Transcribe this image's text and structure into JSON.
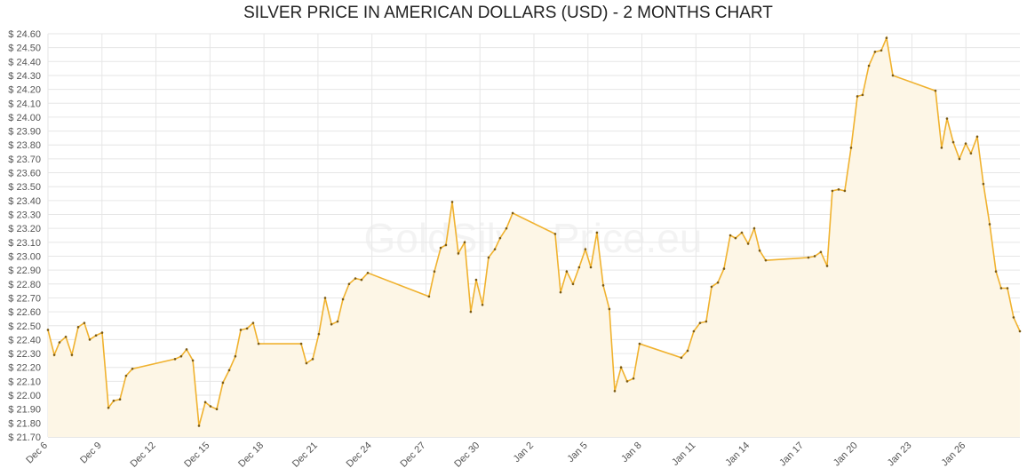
{
  "chart_data": {
    "type": "line",
    "title": "SILVER PRICE IN AMERICAN DOLLARS (USD) - 2 MONTHS CHART",
    "watermark": "GoldSilverPrice.eu",
    "color": "#f0b22f",
    "fill_color": "#fdf6e6",
    "marker_color": "#7a5a14",
    "grid": true,
    "xlim": [
      0,
      54
    ],
    "ylim": [
      21.7,
      24.6
    ],
    "xticks": [
      {
        "value": 0,
        "label": "Dec 6"
      },
      {
        "value": 3,
        "label": "Dec 9"
      },
      {
        "value": 6,
        "label": "Dec 12"
      },
      {
        "value": 9,
        "label": "Dec 15"
      },
      {
        "value": 12,
        "label": "Dec 18"
      },
      {
        "value": 15,
        "label": "Dec 21"
      },
      {
        "value": 18,
        "label": "Dec 24"
      },
      {
        "value": 21,
        "label": "Dec 27"
      },
      {
        "value": 24,
        "label": "Dec 30"
      },
      {
        "value": 27,
        "label": "Jan 2"
      },
      {
        "value": 30,
        "label": "Jan 5"
      },
      {
        "value": 33,
        "label": "Jan 8"
      },
      {
        "value": 36,
        "label": "Jan 11"
      },
      {
        "value": 39,
        "label": "Jan 14"
      },
      {
        "value": 42,
        "label": "Jan 17"
      },
      {
        "value": 45,
        "label": "Jan 20"
      },
      {
        "value": 48,
        "label": "Jan 23"
      },
      {
        "value": 51,
        "label": "Jan 26"
      }
    ],
    "yticks": [
      {
        "value": 21.7,
        "label": "$ 21.70"
      },
      {
        "value": 21.8,
        "label": "$ 21.80"
      },
      {
        "value": 21.9,
        "label": "$ 21.90"
      },
      {
        "value": 22.0,
        "label": "$ 22.00"
      },
      {
        "value": 22.1,
        "label": "$ 22.10"
      },
      {
        "value": 22.2,
        "label": "$ 22.20"
      },
      {
        "value": 22.3,
        "label": "$ 22.30"
      },
      {
        "value": 22.4,
        "label": "$ 22.40"
      },
      {
        "value": 22.5,
        "label": "$ 22.50"
      },
      {
        "value": 22.6,
        "label": "$ 22.60"
      },
      {
        "value": 22.7,
        "label": "$ 22.70"
      },
      {
        "value": 22.8,
        "label": "$ 22.80"
      },
      {
        "value": 22.9,
        "label": "$ 22.90"
      },
      {
        "value": 23.0,
        "label": "$ 23.00"
      },
      {
        "value": 23.1,
        "label": "$ 23.10"
      },
      {
        "value": 23.2,
        "label": "$ 23.20"
      },
      {
        "value": 23.3,
        "label": "$ 23.30"
      },
      {
        "value": 23.4,
        "label": "$ 23.40"
      },
      {
        "value": 23.5,
        "label": "$ 23.50"
      },
      {
        "value": 23.6,
        "label": "$ 23.60"
      },
      {
        "value": 23.7,
        "label": "$ 23.70"
      },
      {
        "value": 23.8,
        "label": "$ 23.80"
      },
      {
        "value": 23.9,
        "label": "$ 23.90"
      },
      {
        "value": 24.0,
        "label": "$ 24.00"
      },
      {
        "value": 24.1,
        "label": "$ 24.10"
      },
      {
        "value": 24.2,
        "label": "$ 24.20"
      },
      {
        "value": 24.3,
        "label": "$ 24.30"
      },
      {
        "value": 24.4,
        "label": "$ 24.40"
      },
      {
        "value": 24.5,
        "label": "$ 24.50"
      },
      {
        "value": 24.6,
        "label": "$ 24.60"
      }
    ],
    "x": [
      0,
      0.35,
      0.64,
      0.99,
      1.33,
      1.68,
      2.02,
      2.32,
      2.67,
      3.01,
      3.36,
      3.65,
      4.0,
      4.34,
      4.69,
      7.06,
      7.4,
      7.7,
      8.05,
      8.39,
      8.74,
      9.03,
      9.38,
      9.72,
      10.07,
      10.41,
      10.71,
      11.06,
      11.4,
      11.7,
      14.07,
      14.36,
      14.71,
      15.05,
      15.4,
      15.75,
      16.09,
      16.39,
      16.73,
      17.08,
      17.42,
      17.77,
      21.17,
      21.47,
      21.82,
      22.11,
      22.46,
      22.8,
      23.15,
      23.49,
      23.79,
      24.14,
      24.48,
      24.83,
      25.12,
      25.47,
      25.82,
      28.18,
      28.48,
      28.82,
      29.17,
      29.51,
      29.86,
      30.16,
      30.5,
      30.85,
      31.19,
      31.49,
      31.84,
      32.18,
      32.53,
      32.87,
      35.19,
      35.54,
      35.88,
      36.23,
      36.57,
      36.87,
      37.22,
      37.56,
      37.91,
      38.2,
      38.55,
      38.9,
      39.24,
      39.54,
      39.88,
      42.25,
      42.6,
      42.94,
      43.29,
      43.58,
      43.93,
      44.27,
      44.62,
      44.97,
      45.26,
      45.61,
      45.95,
      46.3,
      46.59,
      46.94,
      49.31,
      49.65,
      49.95,
      50.3,
      50.64,
      50.99,
      51.28,
      51.63,
      51.97,
      52.32,
      52.67,
      52.96,
      53.31,
      53.65,
      54.0
    ],
    "values": [
      22.47,
      22.29,
      22.38,
      22.42,
      22.29,
      22.49,
      22.52,
      22.4,
      22.43,
      22.45,
      21.91,
      21.96,
      21.97,
      22.14,
      22.19,
      22.26,
      22.28,
      22.33,
      22.25,
      21.78,
      21.95,
      21.92,
      21.9,
      22.09,
      22.18,
      22.28,
      22.47,
      22.48,
      22.52,
      22.37,
      22.37,
      22.23,
      22.26,
      22.44,
      22.7,
      22.51,
      22.53,
      22.69,
      22.8,
      22.84,
      22.83,
      22.88,
      22.71,
      22.89,
      23.06,
      23.08,
      23.39,
      23.02,
      23.1,
      22.6,
      22.83,
      22.65,
      22.99,
      23.05,
      23.13,
      23.2,
      23.31,
      23.16,
      22.74,
      22.89,
      22.8,
      22.92,
      23.05,
      22.92,
      23.17,
      22.79,
      22.62,
      22.03,
      22.2,
      22.1,
      22.12,
      22.37,
      22.27,
      22.32,
      22.46,
      22.52,
      22.53,
      22.78,
      22.81,
      22.91,
      23.15,
      23.13,
      23.17,
      23.09,
      23.2,
      23.04,
      22.97,
      22.99,
      23.0,
      23.03,
      22.93,
      23.47,
      23.48,
      23.47,
      23.78,
      24.15,
      24.16,
      24.37,
      24.47,
      24.48,
      24.57,
      24.3,
      24.19,
      23.78,
      23.99,
      23.82,
      23.7,
      23.81,
      23.74,
      23.86,
      23.52,
      23.23,
      22.89,
      22.77,
      22.77,
      22.56,
      22.46
    ]
  }
}
